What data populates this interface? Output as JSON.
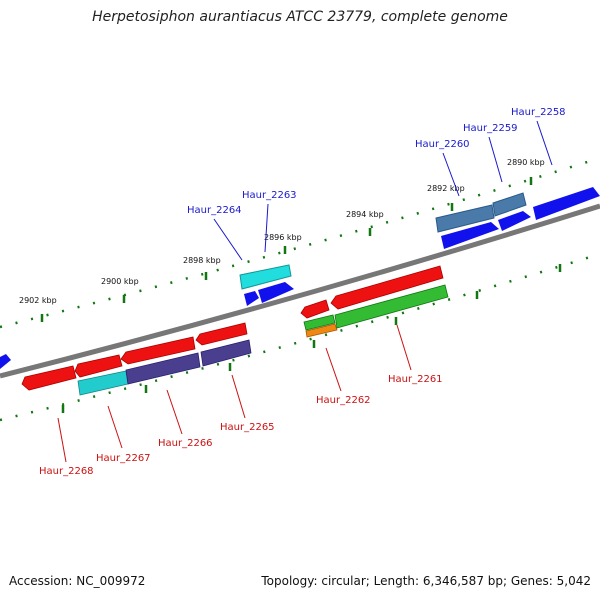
{
  "title": "Herpetosiphon aurantiacus ATCC 23779, complete genome",
  "footer": {
    "accession": "Accession: NC_009972",
    "topology": "Topology: circular; Length: 6,346,587 bp; Genes: 5,042"
  },
  "scale_labels": [
    "2902 kbp",
    "2900 kbp",
    "2898 kbp",
    "2896 kbp",
    "2894 kbp",
    "2892 kbp",
    "2890 kbp"
  ],
  "top_labels": [
    "Haur_2264",
    "Haur_2263",
    "Haur_2260",
    "Haur_2259",
    "Haur_2258"
  ],
  "bottom_labels": [
    "Haur_2268",
    "Haur_2267",
    "Haur_2266",
    "Haur_2265",
    "Haur_2262",
    "Haur_2261"
  ],
  "colors": {
    "red": "#ee1111",
    "cyan": "#22cccc",
    "slate": "#4a3f8f",
    "blue": "#1111ee",
    "steel": "#4a7aaa",
    "green": "#33bb33",
    "orange": "#ee8811",
    "backbone": "#808080",
    "tick": "#117711",
    "top_label": "#1a1acc",
    "bottom_label": "#cc1111"
  }
}
